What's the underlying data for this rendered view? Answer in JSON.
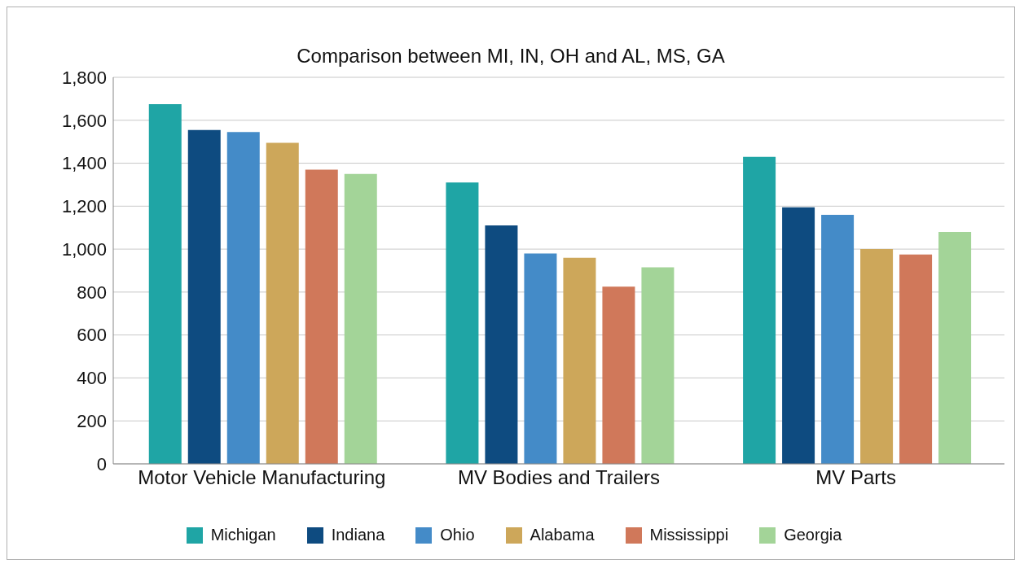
{
  "chart_data": {
    "type": "bar",
    "title": "Comparison between MI, IN, OH and AL, MS, GA",
    "categories": [
      "Motor Vehicle Manufacturing",
      "MV Bodies and Trailers",
      "MV Parts"
    ],
    "series": [
      {
        "name": "Michigan",
        "color": "#1fa5a5",
        "values": [
          1675,
          1310,
          1430
        ]
      },
      {
        "name": "Indiana",
        "color": "#0e4b80",
        "values": [
          1555,
          1110,
          1195
        ]
      },
      {
        "name": "Ohio",
        "color": "#448bc8",
        "values": [
          1545,
          980,
          1160
        ]
      },
      {
        "name": "Alabama",
        "color": "#cda75a",
        "values": [
          1495,
          960,
          1000
        ]
      },
      {
        "name": "Mississippi",
        "color": "#d0785a",
        "values": [
          1370,
          825,
          975
        ]
      },
      {
        "name": "Georgia",
        "color": "#a3d498",
        "values": [
          1350,
          915,
          1080
        ]
      }
    ],
    "ylim": [
      0,
      1800
    ],
    "yticks": [
      0,
      200,
      400,
      600,
      800,
      {
        "value": 1000,
        "label": "1,000"
      },
      {
        "value": 1200,
        "label": "1,200"
      },
      {
        "value": 1400,
        "label": "1,400"
      },
      {
        "value": 1600,
        "label": "1,600"
      },
      {
        "value": 1800,
        "label": "1,800"
      }
    ],
    "grid": "y",
    "legend": "bottom"
  }
}
